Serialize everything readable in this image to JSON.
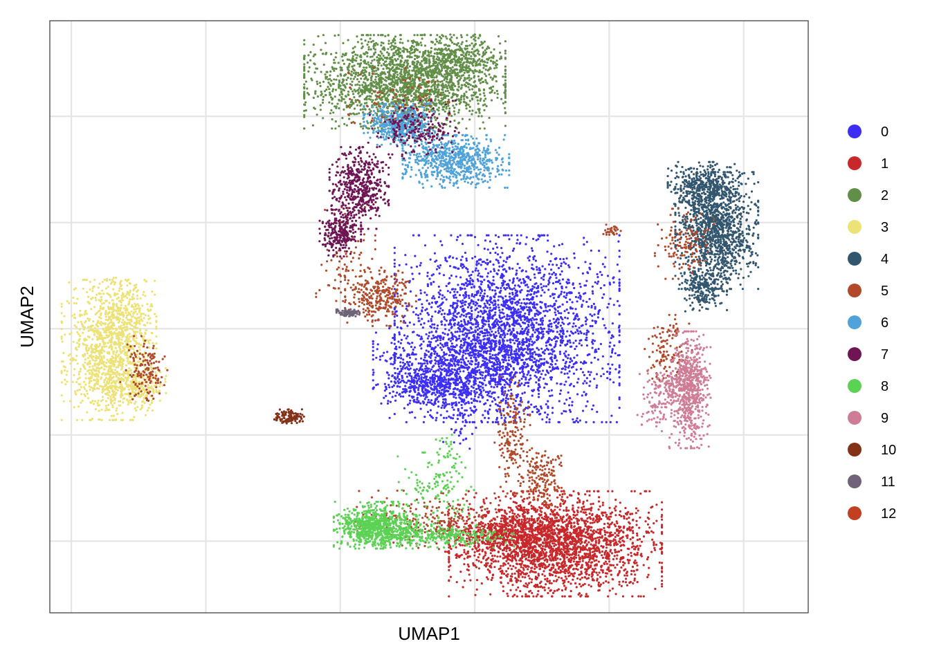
{
  "chart_data": {
    "type": "scatter",
    "title": "",
    "xlabel": "UMAP1",
    "ylabel": "UMAP2",
    "x_ticks": [
      -14,
      -9,
      -4,
      1,
      6,
      11
    ],
    "y_ticks": [
      -8,
      -4,
      0,
      4,
      8
    ],
    "xlim": [
      -14.8,
      13.4
    ],
    "ylim": [
      -10.7,
      11.6
    ],
    "grid": true,
    "tick_labels_shown": false,
    "legend_position": "right",
    "series": [
      {
        "name": "0",
        "color": "#3c2ef5",
        "clusters": [
          {
            "x": 2.2,
            "y": 0.0,
            "sx": 1.9,
            "sy": 1.6,
            "n": 2600
          },
          {
            "x": 0.3,
            "y": -1.6,
            "sx": 1.4,
            "sy": 0.8,
            "n": 900
          },
          {
            "x": -0.8,
            "y": -2.2,
            "sx": 0.7,
            "sy": 0.3,
            "n": 200
          },
          {
            "x": 0.6,
            "y": -3.3,
            "sx": 0.35,
            "sy": 0.6,
            "n": 60
          }
        ]
      },
      {
        "name": "1",
        "color": "#c8282a",
        "clusters": [
          {
            "x": 4.0,
            "y": -8.1,
            "sx": 1.8,
            "sy": 0.9,
            "n": 2300
          },
          {
            "x": 2.0,
            "y": -7.7,
            "sx": 1.1,
            "sy": 0.4,
            "n": 500
          }
        ]
      },
      {
        "name": "2",
        "color": "#628f48",
        "clusters": [
          {
            "x": -1.6,
            "y": 9.3,
            "sx": 1.7,
            "sy": 0.8,
            "n": 2100
          },
          {
            "x": 0.4,
            "y": 10.2,
            "sx": 0.7,
            "sy": 0.4,
            "n": 300
          }
        ]
      },
      {
        "name": "3",
        "color": "#ece277",
        "clusters": [
          {
            "x": -12.6,
            "y": -0.8,
            "sx": 0.8,
            "sy": 1.2,
            "n": 1100
          },
          {
            "x": -11.8,
            "y": -2.2,
            "sx": 0.6,
            "sy": 0.4,
            "n": 250
          },
          {
            "x": -12.0,
            "y": 0.6,
            "sx": 0.5,
            "sy": 0.6,
            "n": 200
          }
        ]
      },
      {
        "name": "4",
        "color": "#33566f",
        "clusters": [
          {
            "x": 10.0,
            "y": 3.7,
            "sx": 0.7,
            "sy": 1.0,
            "n": 1200
          },
          {
            "x": 9.5,
            "y": 5.4,
            "sx": 0.6,
            "sy": 0.4,
            "n": 400
          },
          {
            "x": 9.5,
            "y": 1.5,
            "sx": 0.4,
            "sy": 0.4,
            "n": 200
          }
        ]
      },
      {
        "name": "5",
        "color": "#b04a2b",
        "clusters": [
          {
            "x": -2.5,
            "y": 1.2,
            "sx": 0.6,
            "sy": 0.5,
            "n": 300
          },
          {
            "x": -3.8,
            "y": 2.6,
            "sx": 0.5,
            "sy": 0.9,
            "n": 90
          },
          {
            "x": 2.4,
            "y": -4.0,
            "sx": 0.3,
            "sy": 1.0,
            "n": 180
          },
          {
            "x": 3.5,
            "y": -5.6,
            "sx": 0.4,
            "sy": 0.5,
            "n": 150
          },
          {
            "x": -11.3,
            "y": -1.6,
            "sx": 0.4,
            "sy": 0.6,
            "n": 140
          },
          {
            "x": 8.2,
            "y": -0.8,
            "sx": 0.4,
            "sy": 0.6,
            "n": 120
          },
          {
            "x": 8.8,
            "y": 3.2,
            "sx": 0.5,
            "sy": 0.6,
            "n": 130
          },
          {
            "x": -0.8,
            "y": -7.2,
            "sx": 1.2,
            "sy": 0.5,
            "n": 200
          },
          {
            "x": 6.1,
            "y": 3.7,
            "sx": 0.15,
            "sy": 0.1,
            "n": 30
          },
          {
            "x": -1.5,
            "y": 8.5,
            "sx": 1.0,
            "sy": 0.6,
            "n": 100
          }
        ]
      },
      {
        "name": "6",
        "color": "#4fa3d9",
        "clusters": [
          {
            "x": -1.8,
            "y": 7.7,
            "sx": 0.6,
            "sy": 0.35,
            "n": 500
          },
          {
            "x": 0.3,
            "y": 6.3,
            "sx": 0.9,
            "sy": 0.45,
            "n": 700
          }
        ]
      },
      {
        "name": "7",
        "color": "#6e1554",
        "clusters": [
          {
            "x": -3.3,
            "y": 5.3,
            "sx": 0.5,
            "sy": 0.7,
            "n": 500
          },
          {
            "x": -4.0,
            "y": 3.6,
            "sx": 0.35,
            "sy": 0.4,
            "n": 250
          },
          {
            "x": -1.2,
            "y": 7.5,
            "sx": 0.8,
            "sy": 0.5,
            "n": 200
          }
        ]
      },
      {
        "name": "8",
        "color": "#5cd255",
        "clusters": [
          {
            "x": -2.7,
            "y": -7.4,
            "sx": 0.7,
            "sy": 0.4,
            "n": 800
          },
          {
            "x": -0.4,
            "y": -7.8,
            "sx": 1.3,
            "sy": 0.2,
            "n": 300
          },
          {
            "x": -0.5,
            "y": -6.2,
            "sx": 0.7,
            "sy": 0.7,
            "n": 120
          },
          {
            "x": 0.0,
            "y": -5.0,
            "sx": 0.2,
            "sy": 0.6,
            "n": 40
          }
        ]
      },
      {
        "name": "9",
        "color": "#cf7d97",
        "clusters": [
          {
            "x": 9.0,
            "y": -2.3,
            "sx": 0.35,
            "sy": 1.0,
            "n": 600
          },
          {
            "x": 8.2,
            "y": -2.2,
            "sx": 0.5,
            "sy": 0.4,
            "n": 150
          },
          {
            "x": 7.7,
            "y": -3.2,
            "sx": 0.3,
            "sy": 0.3,
            "n": 50
          }
        ]
      },
      {
        "name": "10",
        "color": "#833218",
        "clusters": [
          {
            "x": -5.9,
            "y": -3.3,
            "sx": 0.25,
            "sy": 0.12,
            "n": 120
          }
        ]
      },
      {
        "name": "11",
        "color": "#6e6378",
        "clusters": [
          {
            "x": -3.7,
            "y": 0.6,
            "sx": 0.2,
            "sy": 0.06,
            "n": 90
          }
        ]
      },
      {
        "name": "12",
        "color": "#c23f22",
        "clusters": [
          {
            "x": 3.8,
            "y": -6.4,
            "sx": 0.3,
            "sy": 0.3,
            "n": 20
          }
        ]
      }
    ]
  }
}
